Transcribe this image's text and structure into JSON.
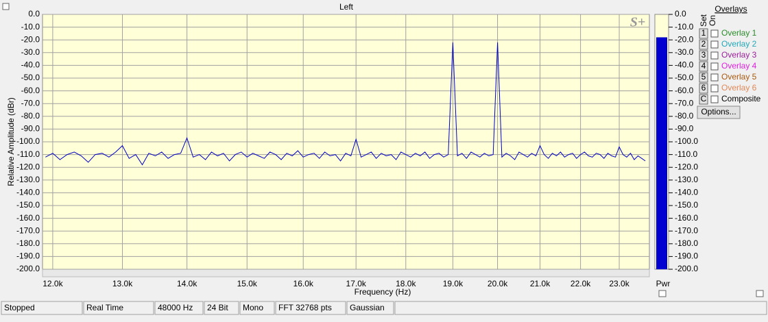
{
  "chart_data": {
    "type": "line",
    "title": "Left",
    "logo": "S+",
    "xlabel": "Frequency (Hz)",
    "ylabel": "Relative Amplitude (dBr)",
    "xscale": "log",
    "grid": true,
    "color": "#0000c0",
    "xlim": [
      11860,
      23810
    ],
    "xticks": [
      {
        "value": 12000,
        "label": "12.0k"
      },
      {
        "value": 13000,
        "label": "13.0k"
      },
      {
        "value": 14000,
        "label": "14.0k"
      },
      {
        "value": 15000,
        "label": "15.0k"
      },
      {
        "value": 16000,
        "label": "16.0k"
      },
      {
        "value": 17000,
        "label": "17.0k"
      },
      {
        "value": 18000,
        "label": "18.0k"
      },
      {
        "value": 19000,
        "label": "19.0k"
      },
      {
        "value": 20000,
        "label": "20.0k"
      },
      {
        "value": 21000,
        "label": "21.0k"
      },
      {
        "value": 22000,
        "label": "22.0k"
      },
      {
        "value": 23000,
        "label": "23.0k"
      }
    ],
    "ylim": [
      -200,
      0
    ],
    "yticks": [
      {
        "value": 0,
        "label": "0.0"
      },
      {
        "value": -10,
        "label": "-10.0"
      },
      {
        "value": -20,
        "label": "-20.0"
      },
      {
        "value": -30,
        "label": "-30.0"
      },
      {
        "value": -40,
        "label": "-40.0"
      },
      {
        "value": -50,
        "label": "-50.0"
      },
      {
        "value": -60,
        "label": "-60.0"
      },
      {
        "value": -70,
        "label": "-70.0"
      },
      {
        "value": -80,
        "label": "-80.0"
      },
      {
        "value": -90,
        "label": "-90.0"
      },
      {
        "value": -100,
        "label": "-100.0"
      },
      {
        "value": -110,
        "label": "-110.0"
      },
      {
        "value": -120,
        "label": "-120.0"
      },
      {
        "value": -130,
        "label": "-130.0"
      },
      {
        "value": -140,
        "label": "-140.0"
      },
      {
        "value": -150,
        "label": "-150.0"
      },
      {
        "value": -160,
        "label": "-160.0"
      },
      {
        "value": -170,
        "label": "-170.0"
      },
      {
        "value": -180,
        "label": "-180.0"
      },
      {
        "value": -190,
        "label": "-190.0"
      },
      {
        "value": -200,
        "label": "-200.0"
      }
    ],
    "x": [
      11900,
      12000,
      12100,
      12200,
      12300,
      12400,
      12500,
      12600,
      12700,
      12800,
      12900,
      13000,
      13100,
      13200,
      13300,
      13400,
      13500,
      13600,
      13700,
      13800,
      13900,
      14000,
      14100,
      14200,
      14300,
      14400,
      14500,
      14600,
      14700,
      14800,
      14900,
      15000,
      15100,
      15200,
      15300,
      15400,
      15500,
      15600,
      15700,
      15800,
      15900,
      16000,
      16100,
      16200,
      16300,
      16400,
      16500,
      16600,
      16700,
      16800,
      16900,
      17000,
      17100,
      17200,
      17300,
      17400,
      17500,
      17600,
      17700,
      17800,
      17900,
      18000,
      18100,
      18200,
      18300,
      18400,
      18500,
      18600,
      18700,
      18800,
      18900,
      19000,
      19100,
      19200,
      19300,
      19400,
      19500,
      19600,
      19700,
      19800,
      19900,
      20000,
      20100,
      20200,
      20300,
      20400,
      20500,
      20600,
      20700,
      20800,
      20900,
      21000,
      21100,
      21200,
      21300,
      21400,
      21500,
      21600,
      21700,
      21800,
      21900,
      22000,
      22100,
      22200,
      22300,
      22400,
      22500,
      22600,
      22700,
      22800,
      22900,
      23000,
      23100,
      23200,
      23300,
      23400,
      23500,
      23600,
      23700
    ],
    "values": [
      -112,
      -109,
      -114,
      -110,
      -108,
      -111,
      -116,
      -110,
      -109,
      -112,
      -108,
      -103,
      -113,
      -110,
      -118,
      -109,
      -111,
      -108,
      -113,
      -110,
      -109,
      -97,
      -112,
      -110,
      -114,
      -108,
      -111,
      -109,
      -115,
      -110,
      -108,
      -112,
      -109,
      -111,
      -113,
      -108,
      -110,
      -114,
      -109,
      -111,
      -107,
      -112,
      -110,
      -109,
      -113,
      -108,
      -111,
      -110,
      -115,
      -109,
      -111,
      -98,
      -112,
      -110,
      -108,
      -113,
      -109,
      -111,
      -110,
      -114,
      -108,
      -110,
      -112,
      -109,
      -111,
      -108,
      -113,
      -110,
      -109,
      -112,
      -110,
      -22,
      -111,
      -109,
      -113,
      -108,
      -110,
      -112,
      -109,
      -111,
      -110,
      -22,
      -112,
      -109,
      -111,
      -114,
      -108,
      -110,
      -112,
      -109,
      -111,
      -103,
      -110,
      -113,
      -109,
      -111,
      -108,
      -112,
      -110,
      -109,
      -113,
      -110,
      -108,
      -111,
      -112,
      -109,
      -110,
      -113,
      -109,
      -111,
      -112,
      -104,
      -110,
      -112,
      -109,
      -114,
      -111,
      -113,
      -115
    ]
  },
  "meter": {
    "label": "Pwr",
    "value": -18,
    "color": "#0000d0"
  },
  "overlays": {
    "title": "Overlays",
    "set_label": "Set",
    "on_label": "On",
    "items": [
      {
        "set": "1",
        "label": "Overlay 1",
        "color": "#2a8c2a"
      },
      {
        "set": "2",
        "label": "Overlay 2",
        "color": "#20a8b8"
      },
      {
        "set": "3",
        "label": "Overlay 3",
        "color": "#9a209a"
      },
      {
        "set": "4",
        "label": "Overlay 4",
        "color": "#e020e0"
      },
      {
        "set": "5",
        "label": "Overlay 5",
        "color": "#a85a10"
      },
      {
        "set": "6",
        "label": "Overlay 6",
        "color": "#e08858"
      },
      {
        "set": "C",
        "label": "Composite",
        "color": "#000000"
      }
    ],
    "options_button": "Options..."
  },
  "status_bar": [
    "Stopped",
    "Real Time",
    "48000 Hz",
    "24 Bit",
    "Mono",
    "FFT 32768 pts",
    "Gaussian"
  ]
}
